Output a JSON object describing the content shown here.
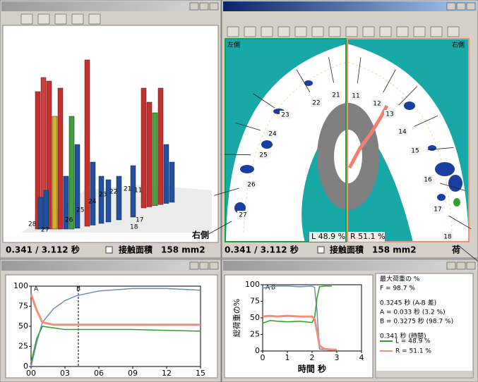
{
  "windows": {
    "view3d": {
      "side_label": "右側",
      "time": "0.341 / 3.112 秒",
      "contact_label": "接触面積",
      "contact_value": "158 mm2",
      "tooth_labels": [
        "28",
        "27",
        "26",
        "25",
        "24",
        "23",
        "22",
        "21",
        "11",
        "17",
        "18"
      ]
    },
    "arch": {
      "left_label": "左側",
      "right_label": "右側",
      "left_share": "L 48.9 %",
      "right_share": "R 51.1 %",
      "time": "0.341 / 3.112 秒",
      "contact_label": "接触面積",
      "contact_value": "158 mm2",
      "status_right": "荷",
      "tooth_labels": [
        "21",
        "22",
        "23",
        "24",
        "25",
        "26",
        "27",
        "11",
        "12",
        "13",
        "14",
        "15",
        "16",
        "17",
        "18"
      ]
    },
    "info": {
      "lines": [
        "最大荷重の %",
        "F = 98.7 %",
        "0.3245 秒 (A-B 差)",
        "A = 0.033 秒 (3.2 %)",
        "B = 0.3275 秒 (98.7 %)",
        "0.341 秒 (時間)"
      ]
    }
  },
  "chart_data": [
    {
      "type": "line",
      "annotations": [
        "A",
        "B"
      ],
      "x": [
        0,
        0.05,
        0.1,
        0.2,
        0.3,
        0.4,
        0.6,
        0.9,
        1.2,
        1.5
      ],
      "series": [
        {
          "color": "#6a8fb8",
          "values": [
            0,
            30,
            55,
            72,
            82,
            88,
            94,
            97,
            97,
            95
          ]
        },
        {
          "color": "#2aa02a",
          "values": [
            5,
            35,
            50,
            48,
            46,
            46,
            46,
            46,
            45,
            44
          ]
        },
        {
          "color": "#f09078",
          "values": [
            90,
            70,
            55,
            52,
            52,
            52,
            52,
            52,
            52,
            52
          ]
        }
      ],
      "xlim": [
        0,
        1.5
      ],
      "ylim": [
        0,
        100
      ],
      "xticks": [
        {
          "value": 0,
          "label": "00"
        },
        {
          "value": 0.3,
          "label": "03"
        },
        {
          "value": 0.6,
          "label": "06"
        },
        {
          "value": 0.9,
          "label": "09"
        },
        {
          "value": 1.2,
          "label": "12"
        },
        {
          "value": 1.5,
          "label": "15"
        }
      ],
      "yticks": [
        0,
        25,
        50,
        75,
        100
      ]
    },
    {
      "type": "line",
      "annotations": [
        "A",
        "B"
      ],
      "y_label": "総荷重の%",
      "x_label": "時間 秒",
      "x": [
        0,
        0.3,
        0.6,
        1.0,
        1.5,
        2.0,
        2.1,
        2.2,
        2.3,
        2.5,
        2.8,
        3.0
      ],
      "series": [
        {
          "color": "#6a8fb8",
          "values": [
            95,
            97,
            98,
            98,
            97,
            98,
            96,
            60,
            3,
            2,
            null,
            null
          ]
        },
        {
          "name": "L = 48.9 %",
          "color": "#2aa02a",
          "values": [
            42,
            46,
            45,
            44,
            45,
            43,
            50,
            80,
            97,
            98,
            98,
            null
          ]
        },
        {
          "name": "R = 51.1 %",
          "color": "#f09078",
          "values": [
            52,
            53,
            52,
            53,
            52,
            52,
            48,
            30,
            8,
            3,
            2,
            2
          ]
        }
      ],
      "xlim": [
        0,
        4
      ],
      "ylim": [
        0,
        100
      ],
      "xticks": [
        0,
        1,
        2,
        3,
        4
      ],
      "yticks": [
        0,
        25,
        50,
        75,
        100
      ]
    }
  ]
}
